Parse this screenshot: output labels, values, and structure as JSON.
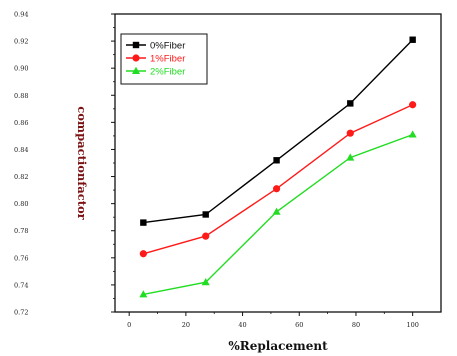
{
  "chart_data": {
    "type": "line",
    "xlabel": "%Replacement",
    "ylabel": "compactionfactor",
    "xlim": [
      -5,
      110
    ],
    "ylim": [
      0.72,
      0.94
    ],
    "xticks": [
      0,
      20,
      40,
      60,
      80,
      100
    ],
    "xtick_labels": [
      "0",
      "20",
      "40",
      "60",
      "80",
      "100"
    ],
    "yticks": [
      0.72,
      0.74,
      0.76,
      0.78,
      0.8,
      0.82,
      0.84,
      0.86,
      0.88,
      0.9,
      0.92,
      0.94
    ],
    "ytick_labels": [
      "0.72",
      "0.74",
      "0.76",
      "0.78",
      "0.80",
      "0.82",
      "0.84",
      "0.86",
      "0.88",
      "0.90",
      "0.92",
      "0.94"
    ],
    "legend_position": "top-left",
    "series": [
      {
        "name": "0%Fiber",
        "color": "#000000",
        "marker": "square",
        "x": [
          5,
          27,
          52,
          78,
          100
        ],
        "y": [
          0.786,
          0.792,
          0.832,
          0.874,
          0.921
        ]
      },
      {
        "name": "1%Fiber",
        "color": "#ff1a1a",
        "marker": "circle",
        "x": [
          5,
          27,
          52,
          78,
          100
        ],
        "y": [
          0.763,
          0.776,
          0.811,
          0.852,
          0.873
        ]
      },
      {
        "name": "2%Fiber",
        "color": "#22dd22",
        "marker": "triangle",
        "x": [
          5,
          27,
          52,
          78,
          100
        ],
        "y": [
          0.733,
          0.742,
          0.794,
          0.834,
          0.851
        ]
      }
    ]
  }
}
